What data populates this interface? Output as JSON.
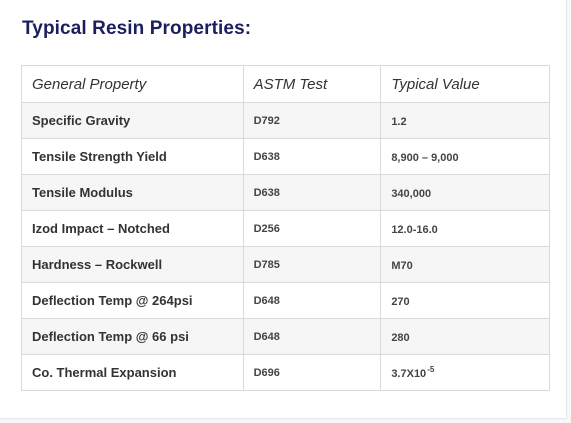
{
  "title": "Typical Resin Properties:",
  "table": {
    "headers": [
      "General Property",
      "ASTM Test",
      "Typical Value"
    ],
    "rows": [
      {
        "property": "Specific Gravity",
        "test": "D792",
        "value": "1.2",
        "sup": ""
      },
      {
        "property": "Tensile Strength Yield",
        "test": "D638",
        "value": "8,900 – 9,000",
        "sup": ""
      },
      {
        "property": "Tensile Modulus",
        "test": "D638",
        "value": "340,000",
        "sup": ""
      },
      {
        "property": "Izod Impact – Notched",
        "test": "D256",
        "value": "12.0-16.0",
        "sup": ""
      },
      {
        "property": "Hardness – Rockwell",
        "test": "D785",
        "value": "M70",
        "sup": ""
      },
      {
        "property": "Deflection Temp @ 264psi",
        "test": "D648",
        "value": "270",
        "sup": ""
      },
      {
        "property": "Deflection Temp @ 66 psi",
        "test": "D648",
        "value": "280",
        "sup": ""
      },
      {
        "property": "Co. Thermal Expansion",
        "test": "D696",
        "value": "3.7X10",
        "sup": "-5"
      }
    ]
  }
}
